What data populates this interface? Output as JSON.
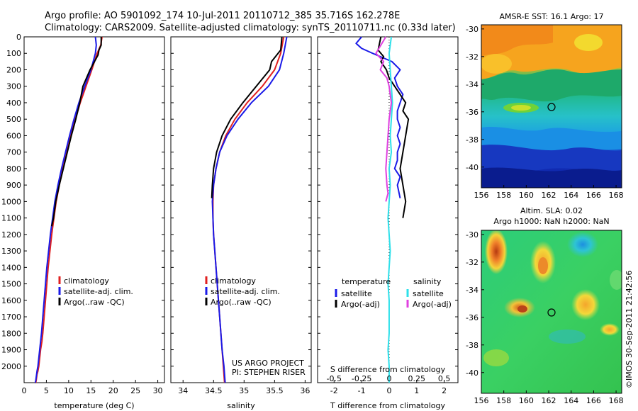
{
  "header": {
    "line1": "Argo profile: AO 5901092_174 10-Jul-2011 20110712_385 35.716S 162.278E",
    "line2": "Climatology: CARS2009. Satellite-adjusted climatology: synTS_20110711.nc (0.33d later)"
  },
  "colors": {
    "climatology": "#e02020",
    "satellite": "#1a1ae8",
    "argo": "#000000",
    "salinity_satellite": "#2ee0ea",
    "salinity_argo": "#e040e0"
  },
  "chart_data": [
    {
      "type": "line",
      "panel": "temperature",
      "xlabel": "temperature (deg C)",
      "ylabel": "",
      "xlim": [
        0,
        31.5
      ],
      "ylim": [
        2100,
        0
      ],
      "xticks": [
        0,
        5,
        10,
        15,
        20,
        25,
        30
      ],
      "yticks": [
        0,
        100,
        200,
        300,
        400,
        500,
        600,
        700,
        800,
        900,
        1000,
        1100,
        1200,
        1300,
        1400,
        1500,
        1600,
        1700,
        1800,
        1900,
        2000
      ],
      "legend": {
        "location": "lower-middle",
        "entries": [
          "climatology",
          "satellite-adj. clim.",
          "Argo(..raw -QC)"
        ]
      },
      "series": [
        {
          "name": "climatology",
          "color": "climatology",
          "x": [
            17.5,
            17.2,
            16.4,
            15.2,
            13.9,
            12.6,
            11.5,
            10.5,
            9.6,
            8.7,
            7.9,
            7.2,
            6.7,
            6.2,
            5.8,
            5.4,
            5.1,
            4.8,
            4.5,
            4.2,
            4.0,
            3.7,
            3.5,
            3.3,
            3.1,
            2.9,
            2.8,
            2.7,
            2.6,
            2.55
          ],
          "y": [
            0,
            50,
            100,
            200,
            300,
            400,
            500,
            600,
            700,
            800,
            900,
            1000,
            1100,
            1200,
            1300,
            1400,
            1500,
            1600,
            1700,
            1800,
            1850,
            1900,
            1950,
            2000,
            2030,
            2050,
            2070,
            2090,
            2100,
            2100
          ]
        },
        {
          "name": "satellite-adj. clim.",
          "color": "satellite",
          "x": [
            16.0,
            16.2,
            16.0,
            15.0,
            13.6,
            12.3,
            11.2,
            10.2,
            9.3,
            8.4,
            7.6,
            6.9,
            6.4,
            5.9,
            5.5,
            5.1,
            4.8,
            4.5,
            4.2,
            3.9,
            3.7,
            3.5,
            3.3,
            3.1,
            2.9,
            2.8,
            2.7,
            2.6,
            2.5
          ],
          "y": [
            0,
            50,
            100,
            200,
            300,
            400,
            500,
            600,
            700,
            800,
            900,
            1000,
            1100,
            1200,
            1300,
            1400,
            1500,
            1600,
            1700,
            1800,
            1850,
            1900,
            1950,
            2000,
            2030,
            2050,
            2070,
            2090,
            2100
          ]
        },
        {
          "name": "Argo(..raw -QC)",
          "color": "argo",
          "x": [
            17.3,
            17.3,
            16.8,
            16.6,
            14.8,
            14.0,
            13.2,
            12.5,
            11.6,
            10.6,
            9.7,
            8.8,
            7.9,
            7.1,
            6.6,
            6.2
          ],
          "y": [
            0,
            50,
            80,
            110,
            200,
            250,
            300,
            400,
            500,
            600,
            700,
            800,
            900,
            1000,
            1100,
            1150
          ]
        }
      ]
    },
    {
      "type": "line",
      "panel": "salinity",
      "xlabel": "salinity",
      "ylabel": "",
      "xlim": [
        33.8,
        36.1
      ],
      "ylim": [
        2100,
        0
      ],
      "xticks": [
        34,
        34.5,
        35,
        35.5,
        36
      ],
      "legend": {
        "location": "lower-middle",
        "entries": [
          "climatology",
          "satellite-adj. clim.",
          "Argo(..raw -QC)"
        ]
      },
      "annotation": [
        "US ARGO PROJECT",
        "PI: STEPHEN RISER"
      ],
      "series": [
        {
          "name": "climatology",
          "color": "climatology",
          "x": [
            35.65,
            35.6,
            35.5,
            35.3,
            35.05,
            34.85,
            34.7,
            34.6,
            34.54,
            34.5,
            34.49,
            34.49,
            34.5,
            34.52,
            34.54,
            34.56,
            34.58,
            34.6,
            34.62,
            34.64,
            34.66,
            34.68
          ],
          "y": [
            0,
            100,
            200,
            300,
            400,
            500,
            600,
            700,
            800,
            900,
            1000,
            1100,
            1200,
            1300,
            1400,
            1500,
            1600,
            1700,
            1800,
            1900,
            2000,
            2100
          ]
        },
        {
          "name": "satellite-adj. clim.",
          "color": "satellite",
          "x": [
            35.7,
            35.65,
            35.58,
            35.4,
            35.12,
            34.9,
            34.72,
            34.6,
            34.54,
            34.5,
            34.48,
            34.49,
            34.5,
            34.52,
            34.54,
            34.56,
            34.58,
            34.6,
            34.62,
            34.64,
            34.67,
            34.69
          ],
          "y": [
            0,
            100,
            200,
            300,
            400,
            500,
            600,
            700,
            800,
            900,
            1000,
            1100,
            1200,
            1300,
            1400,
            1500,
            1600,
            1700,
            1800,
            1900,
            2000,
            2100
          ]
        },
        {
          "name": "Argo(..raw -QC)",
          "color": "argo",
          "x": [
            35.62,
            35.6,
            35.45,
            35.42,
            35.2,
            34.98,
            34.78,
            34.64,
            34.55,
            34.5,
            34.48,
            34.47
          ],
          "y": [
            0,
            80,
            150,
            200,
            300,
            400,
            500,
            600,
            700,
            800,
            900,
            980
          ]
        }
      ]
    },
    {
      "type": "line",
      "panel": "difference",
      "xlabel": "T difference from climatology",
      "top_axis_label": "S difference from climatology",
      "xlim": [
        -2.6,
        2.5
      ],
      "ylim": [
        2100,
        0
      ],
      "xticks": [
        -2,
        -1,
        0,
        1,
        2
      ],
      "top_xticks": [
        -0.5,
        -0.25,
        0,
        0.25,
        0.5
      ],
      "legend": {
        "location": "lower-middle",
        "temperature_title": "temperature",
        "salinity_title": "salinity",
        "temperature_entries": [
          "satellite",
          "Argo(-adj)"
        ],
        "salinity_entries": [
          "satellite",
          "Argo(-adj)"
        ]
      },
      "series": [
        {
          "name": "temperature satellite",
          "color": "satellite",
          "x": [
            -1.0,
            -1.2,
            -1.0,
            -0.6,
            0.1,
            0.4,
            0.2,
            0.3,
            0.5,
            0.4,
            0.3,
            0.3,
            0.4,
            0.3,
            0.4,
            0.3,
            0.3,
            0.2,
            0.4,
            0.3,
            0.4
          ],
          "y": [
            0,
            40,
            70,
            100,
            150,
            200,
            250,
            300,
            350,
            400,
            450,
            500,
            550,
            600,
            650,
            700,
            750,
            800,
            850,
            900,
            980
          ]
        },
        {
          "name": "temperature Argo(-adj)",
          "color": "argo",
          "x": [
            -0.3,
            -0.4,
            -0.2,
            -0.3,
            -0.1,
            0.0,
            0.2,
            0.4,
            0.6,
            0.5,
            0.7,
            0.6,
            0.5,
            0.4,
            0.5,
            0.6,
            0.5
          ],
          "y": [
            0,
            80,
            120,
            150,
            200,
            250,
            300,
            350,
            400,
            450,
            500,
            600,
            700,
            800,
            900,
            1000,
            1100
          ]
        },
        {
          "name": "salinity satellite",
          "color": "salinity_satellite",
          "x": [
            0.02,
            0.0,
            0.01,
            0.02,
            0.03,
            0.02,
            0.01,
            0.02,
            0.0,
            0.01,
            0.0,
            -0.01,
            0.0,
            0.01,
            0.0,
            -0.01,
            0.0,
            0.0,
            0.0,
            -0.01,
            0.0,
            0.0
          ],
          "y": [
            0,
            100,
            200,
            300,
            400,
            500,
            600,
            700,
            800,
            900,
            1000,
            1100,
            1200,
            1300,
            1400,
            1500,
            1600,
            1700,
            1800,
            1900,
            2000,
            2100
          ]
        },
        {
          "name": "salinity Argo(-adj)",
          "color": "salinity_argo",
          "x": [
            -0.03,
            -0.12,
            -0.05,
            -0.08,
            -0.02,
            0.0,
            0.02,
            0.0,
            -0.01,
            -0.02,
            -0.03,
            -0.02,
            -0.01,
            -0.03
          ],
          "y": [
            0,
            100,
            150,
            200,
            250,
            300,
            400,
            500,
            600,
            700,
            800,
            900,
            950,
            1000
          ]
        }
      ]
    },
    {
      "type": "heatmap",
      "panel": "sst_map",
      "title": "AMSR-E SST: 16.1  Argo: 17",
      "xlim": [
        156,
        168.5
      ],
      "ylim": [
        -41.5,
        -29.7
      ],
      "xticks": [
        156,
        158,
        160,
        162,
        164,
        166,
        168
      ],
      "yticks": [
        -30,
        -32,
        -34,
        -36,
        -38,
        -40
      ],
      "float_position": {
        "lon": 162.278,
        "lat": -35.716
      }
    },
    {
      "type": "heatmap",
      "panel": "sla_map",
      "title_lines": [
        "Altim. SLA: 0.02",
        "Argo h1000: NaN h2000: NaN"
      ],
      "xlim": [
        156,
        168.5
      ],
      "ylim": [
        -41.5,
        -29.7
      ],
      "xticks": [
        156,
        158,
        160,
        162,
        164,
        166,
        168
      ],
      "yticks": [
        -30,
        -32,
        -34,
        -36,
        -38,
        -40
      ],
      "float_position": {
        "lon": 162.278,
        "lat": -35.716
      }
    }
  ],
  "watermark": "©IMOS 30-Sep-2011 21:42:56"
}
